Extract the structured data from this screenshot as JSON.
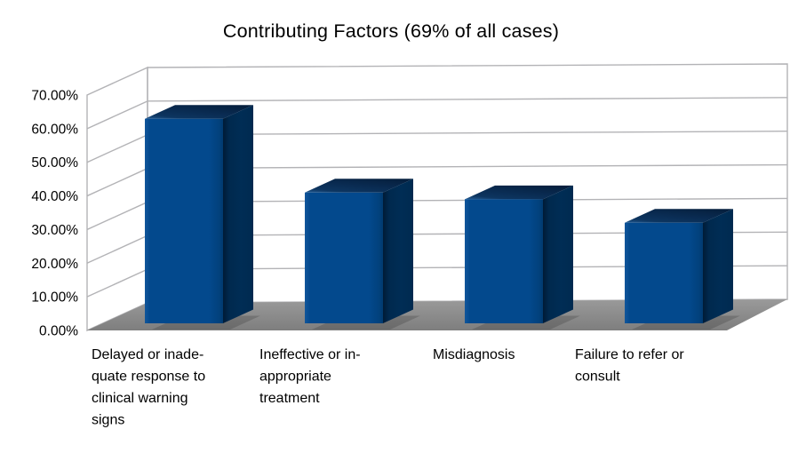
{
  "chart_data": {
    "type": "bar",
    "projection": "3d",
    "title": "Contributing Factors (69% of all cases)",
    "categories": [
      "Delayed or inadequate response to clinical warning signs",
      "Ineffective or inappropriate treatment",
      "Misdiagnosis",
      "Failure to refer or consult"
    ],
    "category_display_lines": [
      [
        "Delayed or inade-",
        "quate response to",
        "clinical warning",
        "signs"
      ],
      [
        "Ineffective or in-",
        "appropriate",
        "treatment"
      ],
      [
        "Misdiagnosis"
      ],
      [
        "Failure to refer or",
        "consult"
      ]
    ],
    "values": [
      61,
      39,
      37,
      30
    ],
    "value_unit": "%",
    "ylim": [
      0,
      70
    ],
    "y_tick_step": 10,
    "y_tick_labels": [
      "0.00%",
      "10.00%",
      "20.00%",
      "30.00%",
      "40.00%",
      "50.00%",
      "60.00%",
      "70.00%"
    ],
    "xlabel": "",
    "ylabel": "",
    "grid": true,
    "legend": "none",
    "colors": {
      "bar_front": "#03498D",
      "bar_side": "#002B52",
      "bar_top": "#0B2D55",
      "bar_front_light": "#11569B",
      "bar_front_dark": "#013A6F",
      "top_front_bevel": "#245C94",
      "top_back_dark": "#06203F",
      "side_edge_dark": "#001B36",
      "floor_back": "#9A9A9A",
      "floor_front": "#7E7E7E",
      "wall_fill": "#FFFFFF",
      "grid_stroke": "#B3B3B6",
      "text": "#000000"
    }
  }
}
